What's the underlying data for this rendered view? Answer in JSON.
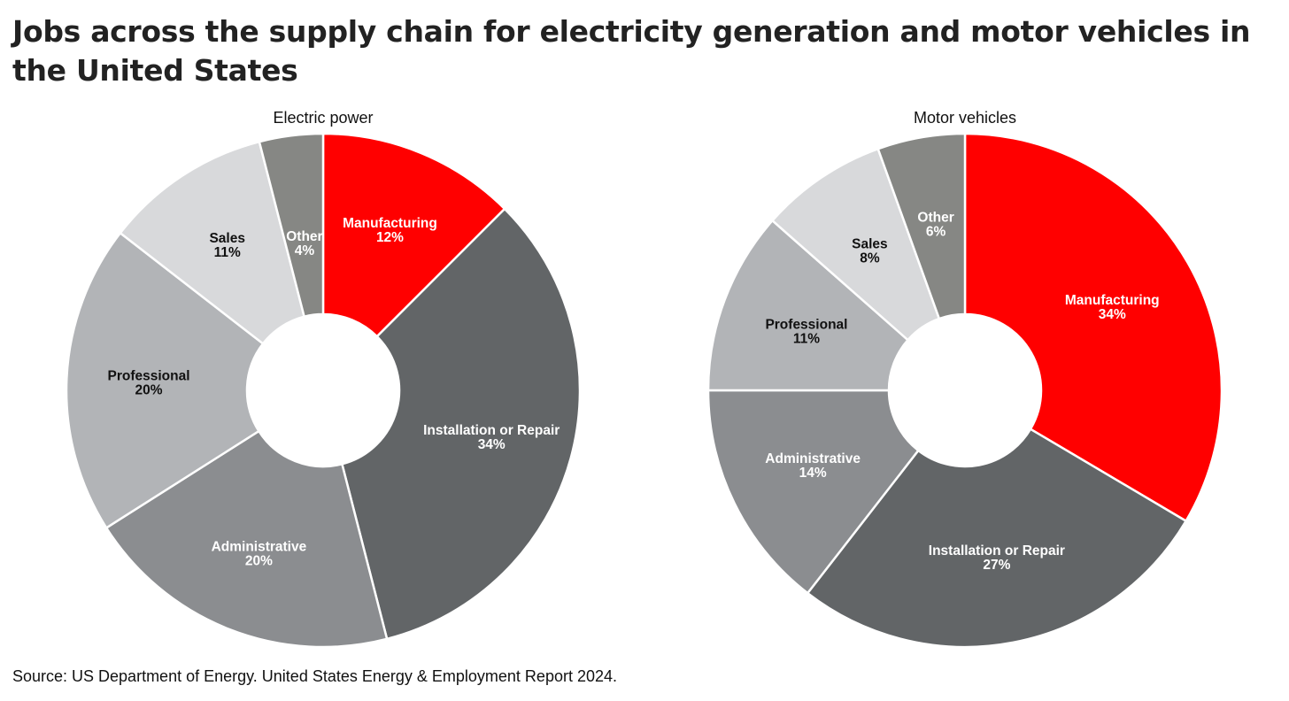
{
  "title": "Jobs across the supply chain for electricity generation and motor vehicles in the United States",
  "source": "Source: US Department of Energy. United States Energy & Employment Report 2024.",
  "colors": {
    "Manufacturing": "#ff0000",
    "Installation or Repair": "#626567",
    "Administrative": "#8b8d90",
    "Professional": "#b2b4b7",
    "Sales": "#d8d9db",
    "Other": "#868784",
    "separator": "#ffffff"
  },
  "label_colors": {
    "Manufacturing": "#ffffff",
    "Installation or Repair": "#ffffff",
    "Administrative": "#ffffff",
    "Professional": "#111111",
    "Sales": "#111111",
    "Other": "#ffffff"
  },
  "chart_data": [
    {
      "type": "pie",
      "variant": "donut",
      "title": "Electric power",
      "unit": "%",
      "start": "12 o'clock",
      "direction": "clockwise",
      "slices": [
        {
          "category": "Manufacturing",
          "label": "Manufacturing",
          "percent_label": "12%",
          "value": 12.5
        },
        {
          "category": "Installation or Repair",
          "label": "Installation or Repair",
          "percent_label": "34%",
          "value": 33.5
        },
        {
          "category": "Administrative",
          "label": "Administrative",
          "percent_label": "20%",
          "value": 20
        },
        {
          "category": "Professional",
          "label": "Professional",
          "percent_label": "20%",
          "value": 19.5
        },
        {
          "category": "Sales",
          "label": "Sales",
          "percent_label": "11%",
          "value": 10.5
        },
        {
          "category": "Other",
          "label": "Other",
          "percent_label": "4%",
          "value": 4
        }
      ]
    },
    {
      "type": "pie",
      "variant": "donut",
      "title": "Motor vehicles",
      "unit": "%",
      "start": "12 o'clock",
      "direction": "clockwise",
      "slices": [
        {
          "category": "Manufacturing",
          "label": "Manufacturing",
          "percent_label": "34%",
          "value": 33.5
        },
        {
          "category": "Installation or Repair",
          "label": "Installation or Repair",
          "percent_label": "27%",
          "value": 27
        },
        {
          "category": "Administrative",
          "label": "Administrative",
          "percent_label": "14%",
          "value": 14.5
        },
        {
          "category": "Professional",
          "label": "Professional",
          "percent_label": "11%",
          "value": 11.5
        },
        {
          "category": "Sales",
          "label": "Sales",
          "percent_label": "8%",
          "value": 8
        },
        {
          "category": "Other",
          "label": "Other",
          "percent_label": "6%",
          "value": 5.5
        }
      ]
    }
  ]
}
